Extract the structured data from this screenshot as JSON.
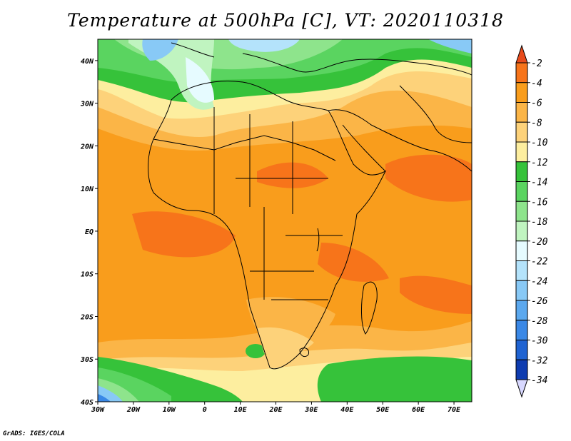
{
  "title": "Temperature at 500hPa [C], VT: 2020110318",
  "credit": "GrADS: IGES/COLA",
  "map": {
    "lon_range": [
      -30,
      75
    ],
    "lat_range": [
      -40,
      45
    ],
    "lon_ticks": [
      {
        "value": -30,
        "label": "30W"
      },
      {
        "value": -20,
        "label": "20W"
      },
      {
        "value": -10,
        "label": "10W"
      },
      {
        "value": 0,
        "label": "0"
      },
      {
        "value": 10,
        "label": "10E"
      },
      {
        "value": 20,
        "label": "20E"
      },
      {
        "value": 30,
        "label": "30E"
      },
      {
        "value": 40,
        "label": "40E"
      },
      {
        "value": 50,
        "label": "50E"
      },
      {
        "value": 60,
        "label": "60E"
      },
      {
        "value": 70,
        "label": "70E"
      }
    ],
    "lat_ticks": [
      {
        "value": 40,
        "label": "40N"
      },
      {
        "value": 30,
        "label": "30N"
      },
      {
        "value": 20,
        "label": "20N"
      },
      {
        "value": 10,
        "label": "10N"
      },
      {
        "value": 0,
        "label": "EQ"
      },
      {
        "value": -10,
        "label": "10S"
      },
      {
        "value": -20,
        "label": "20S"
      },
      {
        "value": -30,
        "label": "30S"
      },
      {
        "value": -40,
        "label": "40S"
      }
    ]
  },
  "colorbar": {
    "labels": [
      "-2",
      "-4",
      "-6",
      "-8",
      "-10",
      "-12",
      "-14",
      "-16",
      "-18",
      "-20",
      "-22",
      "-24",
      "-26",
      "-28",
      "-30",
      "-32",
      "-34"
    ],
    "colors": [
      "#e84b1c",
      "#f7741a",
      "#f99d1c",
      "#fbb547",
      "#fdd27a",
      "#fdee9f",
      "#36c23a",
      "#5ad460",
      "#8ee48c",
      "#c0f4c0",
      "#e6fbff",
      "#b4e3fb",
      "#88c9f6",
      "#5ba8ee",
      "#3a88e6",
      "#1f63d2",
      "#0e3cb0",
      "#07127a"
    ]
  },
  "field_colors": {
    "warm2": "#f7741a",
    "warm4": "#f99d1c",
    "warm6": "#fbb547",
    "warm8": "#fdd27a",
    "warm10": "#fdee9f",
    "green12": "#36c23a",
    "green14": "#5ad460",
    "green16": "#8ee48c",
    "pale18": "#c0f4c0",
    "ice20": "#e6fbff",
    "blue22": "#b4e3fb",
    "blue24": "#88c9f6",
    "blue26": "#5ba8ee"
  }
}
